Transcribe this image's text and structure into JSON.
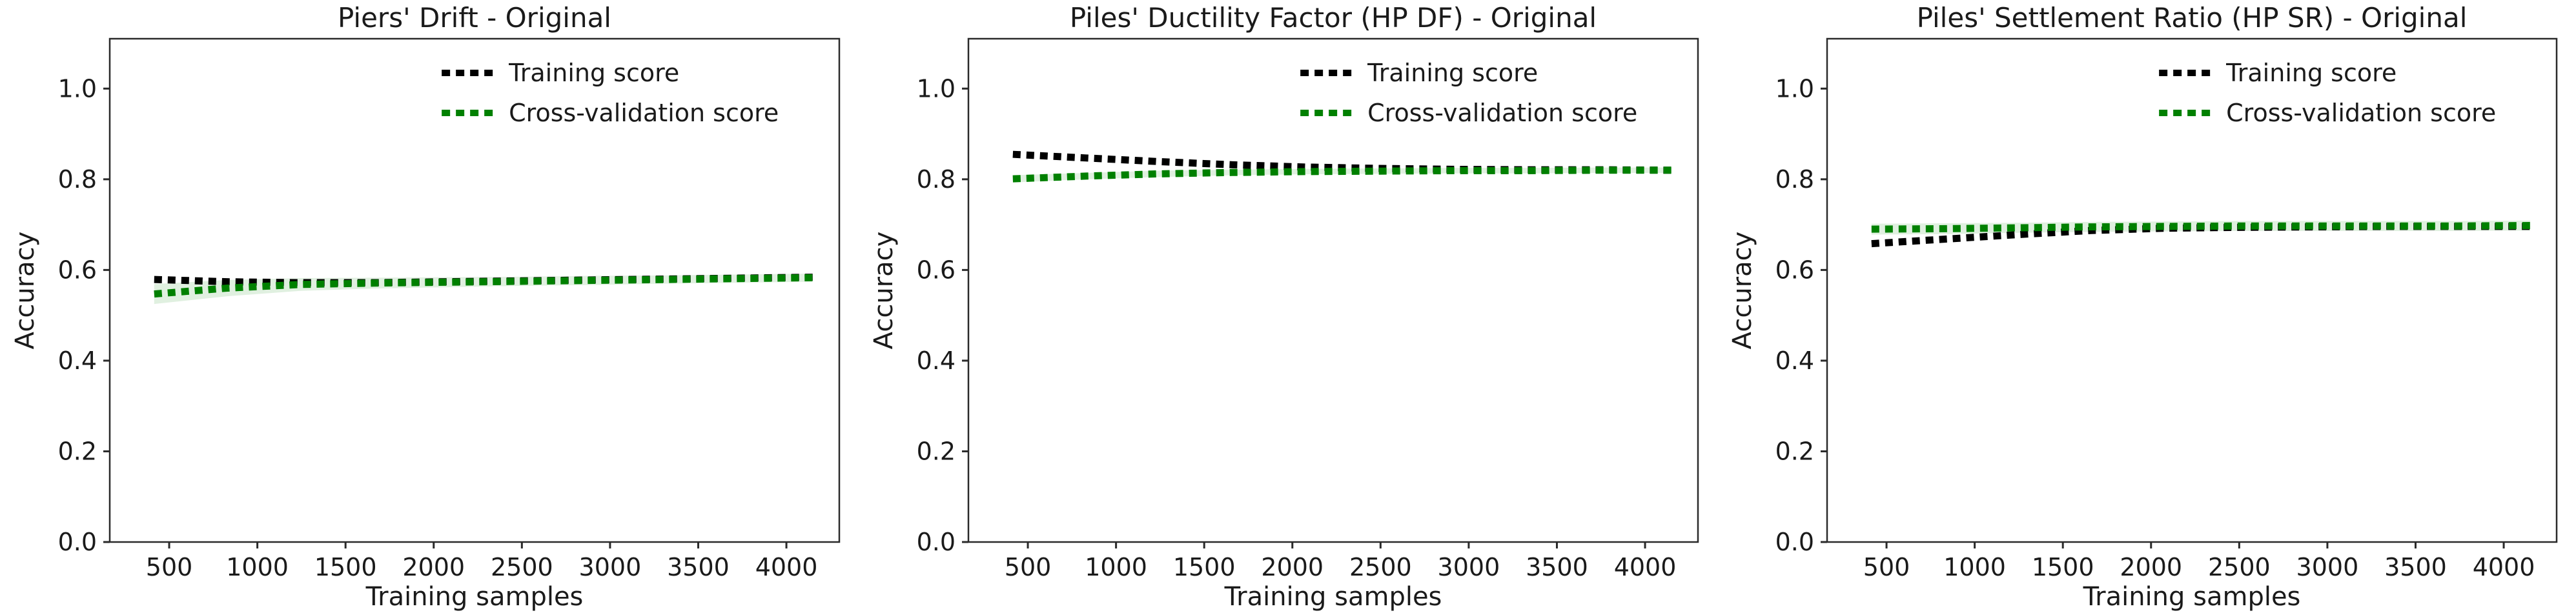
{
  "figure": {
    "background": "#ffffff",
    "panel_count": 3
  },
  "colors": {
    "training_line": "#000000",
    "cv_line": "#008000",
    "cv_band_fill": "#008000",
    "cv_band_opacity": 0.12,
    "axis_spine": "#2a2a2a",
    "text": "#1a1a1a"
  },
  "legend": {
    "items": [
      {
        "label": "Training score",
        "color": "#000000"
      },
      {
        "label": "Cross-validation score",
        "color": "#008000"
      }
    ]
  },
  "axis_labels": {
    "x": "Training samples",
    "y": "Accuracy"
  },
  "chart_data": [
    {
      "type": "line",
      "title": "Piers' Drift - Original",
      "xlabel": "Training samples",
      "ylabel": "Accuracy",
      "line_style": "dotted",
      "grid": false,
      "legend_position": "upper right",
      "xlim": [
        163,
        4300
      ],
      "ylim": [
        0,
        1.11
      ],
      "xticks": [
        "500",
        "1000",
        "1500",
        "2000",
        "2500",
        "3000",
        "3500",
        "4000"
      ],
      "yticks": [
        "0.0",
        "0.2",
        "0.4",
        "0.6",
        "0.8",
        "1.0"
      ],
      "x": [
        415,
        830,
        1245,
        1660,
        2075,
        2490,
        2905,
        3320,
        3735,
        4150
      ],
      "series": [
        {
          "name": "Training score",
          "color": "#000000",
          "values": [
            0.579,
            0.574,
            0.572,
            0.572,
            0.574,
            0.576,
            0.578,
            0.58,
            0.582,
            0.584
          ]
        },
        {
          "name": "Cross-validation score",
          "color": "#008000",
          "values": [
            0.547,
            0.56,
            0.568,
            0.571,
            0.573,
            0.575,
            0.577,
            0.579,
            0.581,
            0.583
          ],
          "std": [
            0.022,
            0.018,
            0.014,
            0.012,
            0.011,
            0.01,
            0.01,
            0.009,
            0.009,
            0.009
          ]
        }
      ]
    },
    {
      "type": "line",
      "title": "Piles' Ductility Factor (HP DF) - Original",
      "xlabel": "Training samples",
      "ylabel": "Accuracy",
      "line_style": "dotted",
      "grid": false,
      "legend_position": "upper right",
      "xlim": [
        163,
        4300
      ],
      "ylim": [
        0,
        1.11
      ],
      "xticks": [
        "500",
        "1000",
        "1500",
        "2000",
        "2500",
        "3000",
        "3500",
        "4000"
      ],
      "yticks": [
        "0.0",
        "0.2",
        "0.4",
        "0.6",
        "0.8",
        "1.0"
      ],
      "x": [
        415,
        830,
        1245,
        1660,
        2075,
        2490,
        2905,
        3320,
        3735,
        4150
      ],
      "series": [
        {
          "name": "Training score",
          "color": "#000000",
          "values": [
            0.855,
            0.847,
            0.839,
            0.832,
            0.827,
            0.824,
            0.822,
            0.821,
            0.821,
            0.82
          ]
        },
        {
          "name": "Cross-validation score",
          "color": "#008000",
          "values": [
            0.801,
            0.807,
            0.812,
            0.815,
            0.817,
            0.818,
            0.819,
            0.819,
            0.82,
            0.82
          ],
          "std": [
            0.008,
            0.007,
            0.007,
            0.006,
            0.006,
            0.006,
            0.006,
            0.006,
            0.006,
            0.006
          ]
        }
      ]
    },
    {
      "type": "line",
      "title": "Piles' Settlement Ratio (HP SR) - Original",
      "xlabel": "Training samples",
      "ylabel": "Accuracy",
      "line_style": "dotted",
      "grid": false,
      "legend_position": "upper right",
      "xlim": [
        163,
        4300
      ],
      "ylim": [
        0,
        1.11
      ],
      "xticks": [
        "500",
        "1000",
        "1500",
        "2000",
        "2500",
        "3000",
        "3500",
        "4000"
      ],
      "yticks": [
        "0.0",
        "0.2",
        "0.4",
        "0.6",
        "0.8",
        "1.0"
      ],
      "x": [
        415,
        830,
        1245,
        1660,
        2075,
        2490,
        2905,
        3320,
        3735,
        4150
      ],
      "series": [
        {
          "name": "Training score",
          "color": "#000000",
          "values": [
            0.658,
            0.668,
            0.678,
            0.687,
            0.692,
            0.694,
            0.695,
            0.696,
            0.696,
            0.696
          ]
        },
        {
          "name": "Cross-validation score",
          "color": "#008000",
          "values": [
            0.69,
            0.691,
            0.693,
            0.695,
            0.696,
            0.697,
            0.697,
            0.697,
            0.697,
            0.698
          ],
          "std": [
            0.012,
            0.012,
            0.011,
            0.011,
            0.011,
            0.011,
            0.011,
            0.011,
            0.011,
            0.011
          ]
        }
      ]
    }
  ]
}
